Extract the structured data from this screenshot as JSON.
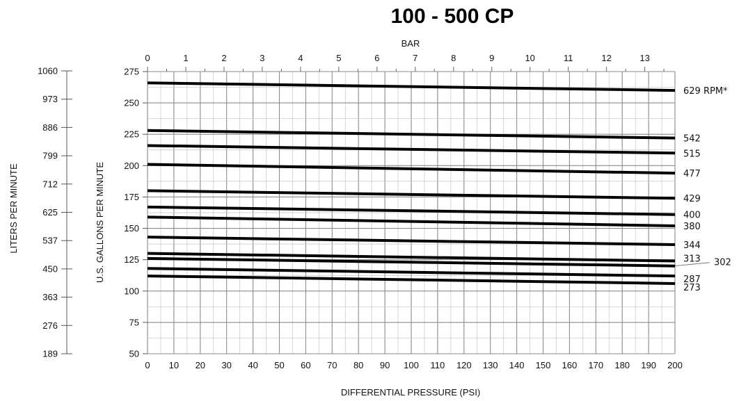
{
  "chart_data": {
    "type": "line",
    "title": "100 - 500 CP",
    "xlabel": "DIFFERENTIAL PRESSURE (PSI)",
    "ylabel": "U.S. GALLONS PER MINUTE",
    "secondary_x_label": "BAR",
    "secondary_y_label": "LITERS PER MINUTE",
    "xlim": [
      0,
      200
    ],
    "ylim": [
      50,
      275
    ],
    "x_ticks": [
      0,
      10,
      20,
      30,
      40,
      50,
      60,
      70,
      80,
      90,
      100,
      110,
      120,
      130,
      140,
      150,
      160,
      170,
      180,
      190,
      200
    ],
    "y_ticks": [
      50,
      75,
      100,
      125,
      150,
      175,
      200,
      225,
      250,
      275
    ],
    "bar_ticks": [
      0,
      1,
      2,
      3,
      4,
      5,
      6,
      7,
      8,
      9,
      10,
      11,
      12,
      13
    ],
    "lpm_ticks": [
      "1060",
      "973",
      "886",
      "799",
      "712",
      "625",
      "537",
      "450",
      "363",
      "276",
      "189"
    ],
    "grid": true,
    "series": [
      {
        "name": "629 RPM*",
        "x": [
          0,
          200
        ],
        "y": [
          266,
          260
        ]
      },
      {
        "name": "542",
        "x": [
          0,
          200
        ],
        "y": [
          228,
          222
        ]
      },
      {
        "name": "515",
        "x": [
          0,
          200
        ],
        "y": [
          216,
          210
        ]
      },
      {
        "name": "477",
        "x": [
          0,
          200
        ],
        "y": [
          201,
          194
        ]
      },
      {
        "name": "429",
        "x": [
          0,
          200
        ],
        "y": [
          180,
          174
        ]
      },
      {
        "name": "400",
        "x": [
          0,
          200
        ],
        "y": [
          167,
          161
        ]
      },
      {
        "name": "380",
        "x": [
          0,
          200
        ],
        "y": [
          159,
          152
        ]
      },
      {
        "name": "344",
        "x": [
          0,
          200
        ],
        "y": [
          143,
          137
        ]
      },
      {
        "name": "313",
        "x": [
          0,
          200
        ],
        "y": [
          130,
          124
        ]
      },
      {
        "name": "302",
        "x": [
          0,
          200
        ],
        "y": [
          126,
          120
        ]
      },
      {
        "name": "287",
        "x": [
          0,
          200
        ],
        "y": [
          118,
          112
        ]
      },
      {
        "name": "273",
        "x": [
          0,
          200
        ],
        "y": [
          112,
          106
        ]
      }
    ]
  }
}
